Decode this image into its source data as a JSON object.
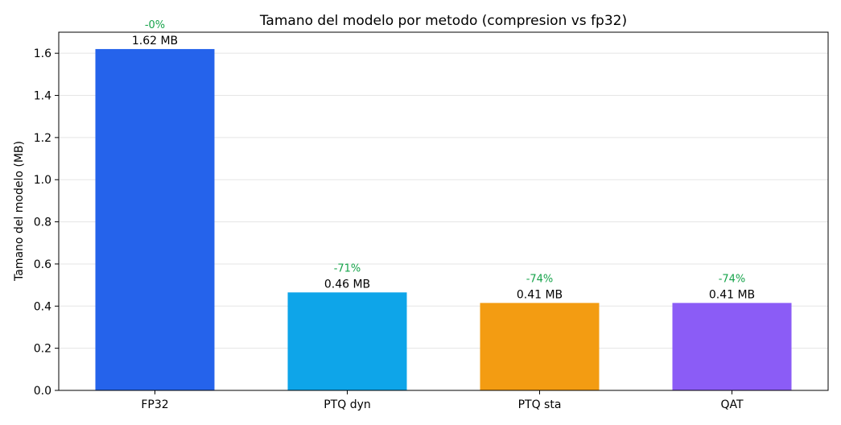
{
  "chart_data": {
    "type": "bar",
    "title": "Tamano del modelo por metodo (compresion vs fp32)",
    "xlabel": "",
    "ylabel": "Tamano del modelo (MB)",
    "categories": [
      "FP32",
      "PTQ dyn",
      "PTQ sta",
      "QAT"
    ],
    "values": [
      1.62,
      0.465,
      0.415,
      0.415
    ],
    "value_labels": [
      "1.62 MB",
      "0.46 MB",
      "0.41 MB",
      "0.41 MB"
    ],
    "reduction_labels": [
      "-0%",
      "-71%",
      "-74%",
      "-74%"
    ],
    "bar_colors": [
      "#2563eb",
      "#0ea5e9",
      "#f39c12",
      "#8b5cf6"
    ],
    "reduction_color": "#16a34a",
    "ylim": [
      0,
      1.7
    ],
    "yticks": [
      0.0,
      0.2,
      0.4,
      0.6,
      0.8,
      1.0,
      1.2,
      1.4,
      1.6
    ],
    "ytick_labels": [
      "0.0",
      "0.2",
      "0.4",
      "0.6",
      "0.8",
      "1.0",
      "1.2",
      "1.4",
      "1.6"
    ],
    "grid": "horizontal",
    "legend": "none"
  }
}
